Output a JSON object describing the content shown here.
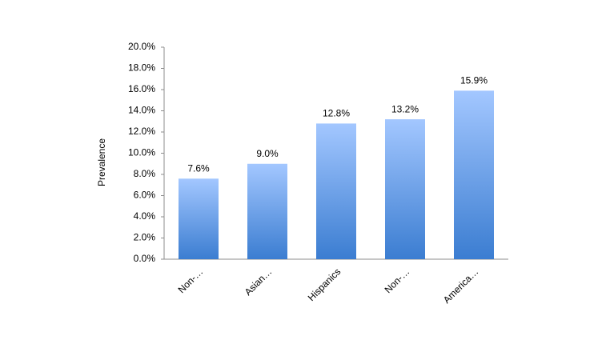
{
  "chart_data": {
    "type": "bar",
    "y_label": "Prevalence",
    "categories": [
      "Non-…",
      "Asian…",
      "Hispanics",
      "Non-…",
      "America…"
    ],
    "values": [
      7.6,
      9.0,
      12.8,
      13.2,
      15.9
    ],
    "value_labels": [
      "7.6%",
      "9.0%",
      "12.8%",
      "13.2%",
      "15.9%"
    ],
    "gradient_colors": [
      "#a3c7ff",
      "#3b7dd1"
    ],
    "ylim": [
      0,
      20
    ],
    "yticks": [
      {
        "value": 0,
        "label": "0.0%"
      },
      {
        "value": 2,
        "label": "2.0%"
      },
      {
        "value": 4,
        "label": "4.0%"
      },
      {
        "value": 6,
        "label": "6.0%"
      },
      {
        "value": 8,
        "label": "8.0%"
      },
      {
        "value": 10,
        "label": "10.0%"
      },
      {
        "value": 12,
        "label": "12.0%"
      },
      {
        "value": 14,
        "label": "14.0%"
      },
      {
        "value": 16,
        "label": "16.0%"
      },
      {
        "value": 18,
        "label": "18.0%"
      },
      {
        "value": 20,
        "label": "20.0%"
      }
    ],
    "grid": false
  }
}
